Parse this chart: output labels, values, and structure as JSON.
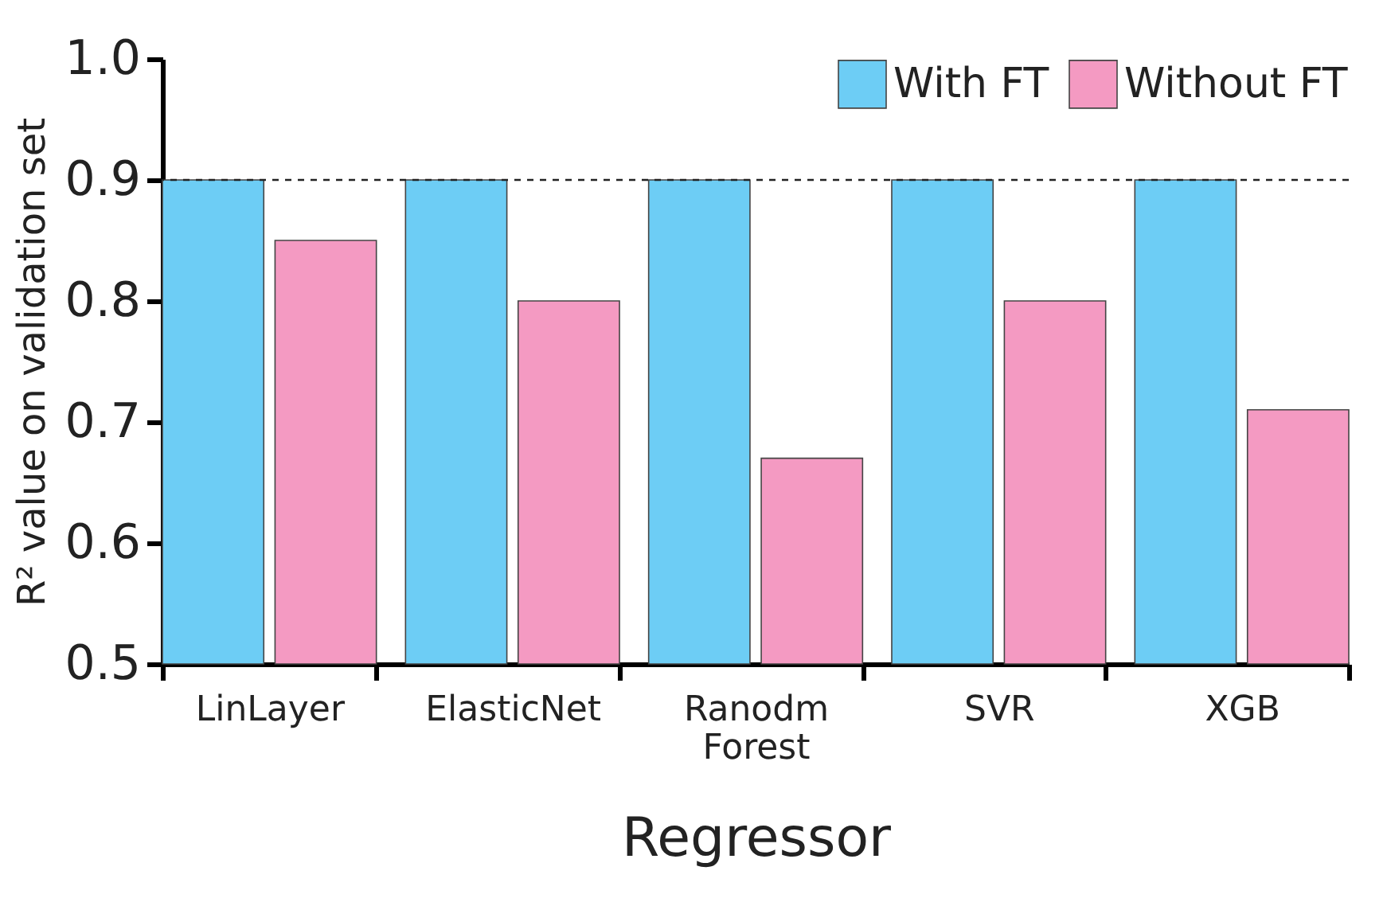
{
  "chart_data": {
    "type": "bar",
    "xlabel": "Regressor",
    "ylabel": "R² value on validation set",
    "categories": [
      "LinLayer",
      "ElasticNet",
      "Ranodm Forest",
      "SVR",
      "XGB"
    ],
    "series": [
      {
        "name": "With FT",
        "color": "#6dcdf5",
        "values": [
          0.9,
          0.9,
          0.9,
          0.9,
          0.9
        ]
      },
      {
        "name": "Without FT",
        "color": "#f49ac2",
        "values": [
          0.85,
          0.8,
          0.67,
          0.8,
          0.71
        ]
      }
    ],
    "ylim": [
      0.5,
      1.0
    ],
    "yticks": [
      {
        "value": 0.5,
        "label": "0.5"
      },
      {
        "value": 0.6,
        "label": "0.6"
      },
      {
        "value": 0.7,
        "label": "0.7"
      },
      {
        "value": 0.8,
        "label": "0.8"
      },
      {
        "value": 0.9,
        "label": "0.9"
      },
      {
        "value": 1.0,
        "label": "1.0"
      }
    ],
    "ref_lines": [
      {
        "axis": "y",
        "value": 0.9,
        "line_style": "dashed"
      }
    ],
    "legend": "top right",
    "grid": false
  }
}
